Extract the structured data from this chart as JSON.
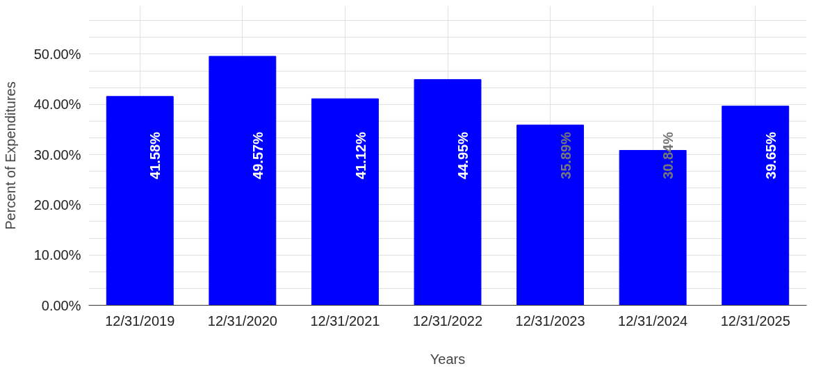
{
  "chart_data": {
    "type": "bar",
    "xlabel": "Years",
    "ylabel": "Percent of Expenditures",
    "categories": [
      "12/31/2019",
      "12/31/2020",
      "12/31/2021",
      "12/31/2022",
      "12/31/2023",
      "12/31/2024",
      "12/31/2025"
    ],
    "values": [
      41.58,
      49.57,
      41.12,
      44.95,
      35.89,
      30.84,
      39.65
    ],
    "value_labels": [
      "41.58%",
      "49.57%",
      "41.12%",
      "44.95%",
      "35.89%",
      "30.84%",
      "39.65%"
    ],
    "color": "#0000ff",
    "ylim": [
      0,
      59.6
    ],
    "yticks": [
      {
        "value": 0,
        "label": "0.00%"
      },
      {
        "value": 3.33,
        "label": null
      },
      {
        "value": 6.67,
        "label": null
      },
      {
        "value": 10,
        "label": "10.00%"
      },
      {
        "value": 13.33,
        "label": null
      },
      {
        "value": 16.67,
        "label": null
      },
      {
        "value": 20,
        "label": "20.00%"
      },
      {
        "value": 23.33,
        "label": null
      },
      {
        "value": 26.67,
        "label": null
      },
      {
        "value": 30,
        "label": "30.00%"
      },
      {
        "value": 33.33,
        "label": null
      },
      {
        "value": 36.67,
        "label": null
      },
      {
        "value": 40,
        "label": "40.00%"
      },
      {
        "value": 43.33,
        "label": null
      },
      {
        "value": 46.67,
        "label": null
      },
      {
        "value": 50,
        "label": "50.00%"
      },
      {
        "value": 53.33,
        "label": null
      },
      {
        "value": 56.67,
        "label": null
      }
    ],
    "grid": true
  }
}
